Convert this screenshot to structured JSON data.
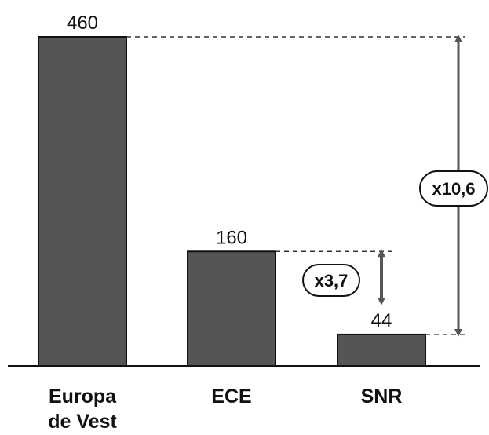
{
  "chart_data": {
    "type": "bar",
    "categories": [
      [
        "Europa",
        "de Vest"
      ],
      [
        "ECE"
      ],
      [
        "SNR"
      ]
    ],
    "values": [
      460,
      160,
      44
    ],
    "value_labels": [
      "460",
      "160",
      "44"
    ],
    "ylim": [
      0,
      460
    ],
    "grid": false,
    "legend": "none",
    "annotations": [
      {
        "text": "x10,6",
        "from_category": 0,
        "to_category": 2
      },
      {
        "text": "x3,7",
        "from_category": 1,
        "to_category": 2
      }
    ],
    "colors": {
      "bar": "#555555",
      "outline": "#111111",
      "arrow": "#555555",
      "dash": "#333333"
    }
  }
}
